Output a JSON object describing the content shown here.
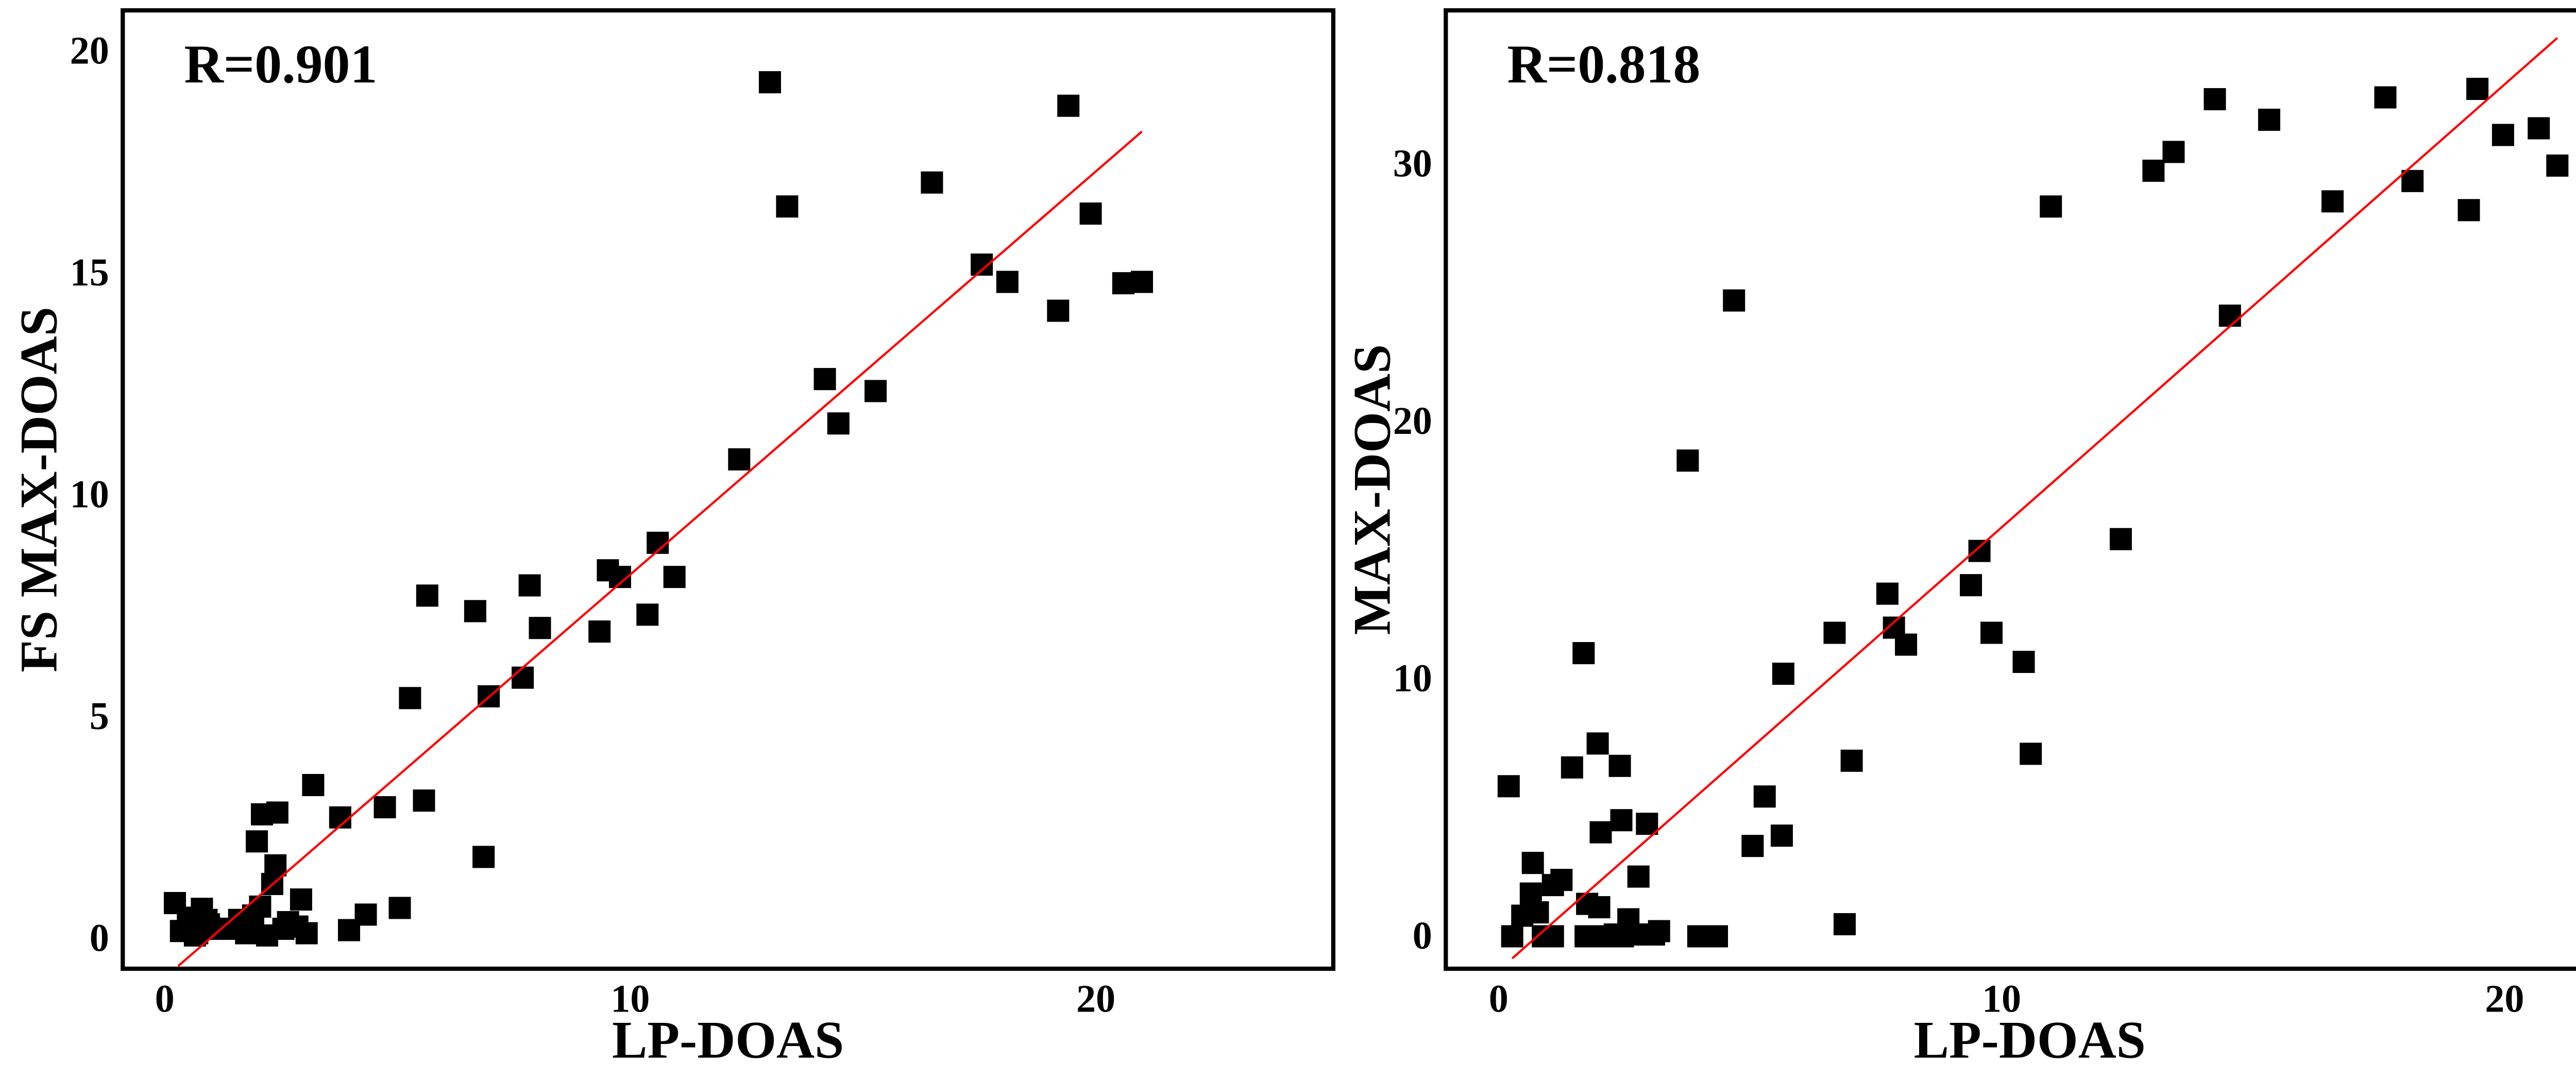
{
  "chart_data": [
    {
      "type": "scatter",
      "annotation": "R=0.901",
      "xlabel": "LP-DOAS",
      "ylabel": "FS MAX-DOAS",
      "color": "#000000",
      "xlim": [
        -0.9,
        25.1
      ],
      "ylim": [
        -0.6,
        21.0
      ],
      "xticks": [
        0,
        10,
        20
      ],
      "yticks": [
        0,
        5,
        10,
        15,
        20
      ],
      "x": [
        0.22,
        0.35,
        0.55,
        0.7,
        0.8,
        0.95,
        1.1,
        0.5,
        0.65,
        0.9,
        1.3,
        1.6,
        1.75,
        1.9,
        2.05,
        1.98,
        2.09,
        2.42,
        2.38,
        2.31,
        2.2,
        2.55,
        2.65,
        2.85,
        3.05,
        2.93,
        3.19,
        3.77,
        3.96,
        4.32,
        4.73,
        5.05,
        5.27,
        5.57,
        5.64,
        6.67,
        6.85,
        6.96,
        7.69,
        7.84,
        8.06,
        9.34,
        9.52,
        9.78,
        10.37,
        10.59,
        10.95,
        12.34,
        13.0,
        13.37,
        14.18,
        14.47,
        15.27,
        16.48,
        17.55,
        18.1,
        19.19,
        19.41,
        19.89,
        20.59,
        20.99
      ],
      "y": [
        0.88,
        0.25,
        0.35,
        0.2,
        0.75,
        0.4,
        0.3,
        0.55,
        0.15,
        0.5,
        0.3,
        0.5,
        0.2,
        0.6,
        0.8,
        2.27,
        2.88,
        2.92,
        1.73,
        1.31,
        0.15,
        0.3,
        0.45,
        0.35,
        0.2,
        0.96,
        3.54,
        2.81,
        0.27,
        0.62,
        3.04,
        0.77,
        5.5,
        3.19,
        7.81,
        7.46,
        1.92,
        5.54,
        5.96,
        8.04,
        7.08,
        7.0,
        8.38,
        8.23,
        7.38,
        9.0,
        8.23,
        10.88,
        19.38,
        16.58,
        12.69,
        11.69,
        12.42,
        17.12,
        15.27,
        14.88,
        14.23,
        18.85,
        16.42,
        14.85,
        14.88
      ],
      "fit_line": {
        "color": "#ff0000",
        "x": [
          0.29,
          20.99
        ],
        "y": [
          -0.54,
          18.27
        ]
      }
    },
    {
      "type": "scatter",
      "annotation": "R=0.818",
      "xlabel": "LP-DOAS",
      "ylabel": "MAX-DOAS",
      "color": "#000000",
      "xlim": [
        -1.05,
        22.17
      ],
      "ylim": [
        -1.13,
        36.1
      ],
      "xticks": [
        0,
        10,
        20
      ],
      "yticks": [
        0,
        10,
        20,
        30
      ],
      "x": [
        0.2,
        0.27,
        0.47,
        0.64,
        0.68,
        0.78,
        0.88,
        1.08,
        1.08,
        1.25,
        1.46,
        1.69,
        1.76,
        1.97,
        2.03,
        2.41,
        2.44,
        2.0,
        2.58,
        2.31,
        2.47,
        2.75,
        2.07,
        1.73,
        2.95,
        2.78,
        3.09,
        3.19,
        3.76,
        3.97,
        4.1,
        4.34,
        4.68,
        5.05,
        5.29,
        5.63,
        5.66,
        6.68,
        6.88,
        7.02,
        7.73,
        7.86,
        8.1,
        9.39,
        9.56,
        9.8,
        10.44,
        10.58,
        10.98,
        12.37,
        13.02,
        13.42,
        14.24,
        14.54,
        15.32,
        16.58,
        17.63,
        18.17,
        19.29,
        19.46,
        19.97,
        20.68,
        21.05
      ],
      "y": [
        5.96,
        0.13,
        0.93,
        1.79,
        2.98,
        1.06,
        0.13,
        0.13,
        2.12,
        2.32,
        6.69,
        11.13,
        1.39,
        7.62,
        4.17,
        6.75,
        4.64,
        1.26,
        0.79,
        0.2,
        0.13,
        0.2,
        0.13,
        0.13,
        4.5,
        2.45,
        0.2,
        0.33,
        18.61,
        0.13,
        0.13,
        0.13,
        24.83,
        3.64,
        5.56,
        4.04,
        10.33,
        11.92,
        0.6,
        6.95,
        13.44,
        12.12,
        11.46,
        13.77,
        15.1,
        11.92,
        10.79,
        7.22,
        28.48,
        15.56,
        29.87,
        30.6,
        32.65,
        24.24,
        31.85,
        28.68,
        32.72,
        29.47,
        28.34,
        33.05,
        31.26,
        31.52,
        30.07
      ],
      "fit_line": {
        "color": "#ff0000",
        "x": [
          0.27,
          21.05
        ],
        "y": [
          -0.73,
          35.03
        ]
      }
    }
  ]
}
